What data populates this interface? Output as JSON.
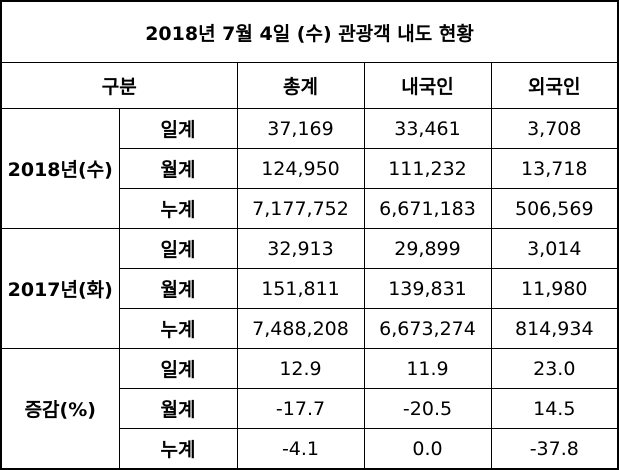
{
  "title": "2018년 7월 4일 (수) 관광객 내도 현황",
  "header": [
    "구분",
    "총계",
    "내국인",
    "외국인"
  ],
  "groups": [
    {
      "label": "2018년(수)",
      "rows": [
        {
          "label": "일계",
          "values": [
            "37,169",
            "33,461",
            "3,708"
          ]
        },
        {
          "label": "월계",
          "values": [
            "124,950",
            "111,232",
            "13,718"
          ]
        },
        {
          "label": "누계",
          "values": [
            "7,177,752",
            "6,671,183",
            "506,569"
          ]
        }
      ]
    },
    {
      "label": "2017년(화)",
      "rows": [
        {
          "label": "일계",
          "values": [
            "32,913",
            "29,899",
            "3,014"
          ]
        },
        {
          "label": "월계",
          "values": [
            "151,811",
            "139,831",
            "11,980"
          ]
        },
        {
          "label": "누계",
          "values": [
            "7,488,208",
            "6,673,274",
            "814,934"
          ]
        }
      ]
    },
    {
      "label": "증감(%)",
      "rows": [
        {
          "label": "일계",
          "values": [
            "12.9",
            "11.9",
            "23.0"
          ]
        },
        {
          "label": "월계",
          "values": [
            "-17.7",
            "-20.5",
            "14.5"
          ]
        },
        {
          "label": "누계",
          "values": [
            "-4.1",
            "0.0",
            "-37.8"
          ]
        }
      ]
    }
  ]
}
